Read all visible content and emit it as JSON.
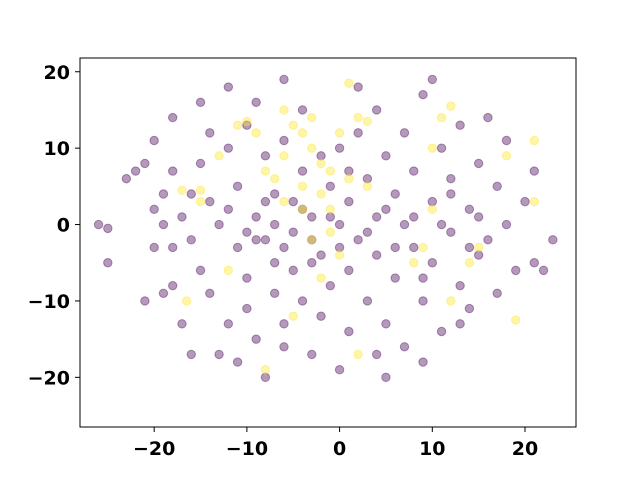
{
  "chart_data": {
    "type": "scatter",
    "title": "",
    "xlabel": "",
    "ylabel": "",
    "xlim": [
      -28,
      25.5
    ],
    "ylim": [
      -26.5,
      21.8
    ],
    "xticks": [
      -20,
      -10,
      0,
      10,
      20
    ],
    "yticks": [
      -20,
      -10,
      0,
      10,
      20
    ],
    "xtick_labels": [
      "−20",
      "−10",
      "0",
      "10",
      "20"
    ],
    "ytick_labels": [
      "−20",
      "−10",
      "0",
      "10",
      "20"
    ],
    "grid": false,
    "colormap_endpoints": {
      "class_0": "#440154",
      "class_1": "#fde725"
    },
    "marker_alpha": 0.4,
    "series": [
      {
        "color": "#440154",
        "points": [
          [
            -26,
            0
          ],
          [
            -25,
            -0.5
          ],
          [
            -25,
            -5
          ],
          [
            -23,
            6
          ],
          [
            -22,
            7
          ],
          [
            -21,
            8
          ],
          [
            -20,
            11
          ],
          [
            -20,
            2
          ],
          [
            -20,
            -3
          ],
          [
            -21,
            -10
          ],
          [
            -19,
            0
          ],
          [
            -19,
            4
          ],
          [
            -18,
            7
          ],
          [
            -18,
            -3
          ],
          [
            -18,
            -8
          ],
          [
            -18,
            14
          ],
          [
            -17,
            -13
          ],
          [
            -17,
            1
          ],
          [
            -16,
            4
          ],
          [
            -16,
            -2
          ],
          [
            -15,
            16
          ],
          [
            -15,
            8
          ],
          [
            -15,
            -6
          ],
          [
            -14,
            12
          ],
          [
            -14,
            3
          ],
          [
            -14,
            -9
          ],
          [
            -13,
            0
          ],
          [
            -13,
            -17
          ],
          [
            -12,
            18
          ],
          [
            -12,
            10
          ],
          [
            -12,
            -13
          ],
          [
            -11,
            5
          ],
          [
            -11,
            -3
          ],
          [
            -10,
            13
          ],
          [
            -10,
            -7
          ],
          [
            -10,
            -11
          ],
          [
            -9,
            1
          ],
          [
            -9,
            16
          ],
          [
            -9,
            -15
          ],
          [
            -8,
            9
          ],
          [
            -8,
            -2
          ],
          [
            -8,
            -20
          ],
          [
            -7,
            4
          ],
          [
            -7,
            -5
          ],
          [
            -7,
            -9
          ],
          [
            -6,
            19
          ],
          [
            -6,
            11
          ],
          [
            -6,
            -13
          ],
          [
            -5,
            -1
          ],
          [
            -5,
            3
          ],
          [
            -5,
            -6
          ],
          [
            -4,
            15
          ],
          [
            -4,
            7
          ],
          [
            -4,
            -10
          ],
          [
            -3,
            -2
          ],
          [
            -3,
            1
          ],
          [
            -3,
            -17
          ],
          [
            -2,
            9
          ],
          [
            -2,
            -4
          ],
          [
            -2,
            -12
          ],
          [
            -1,
            5
          ],
          [
            -1,
            -8
          ],
          [
            0,
            0
          ],
          [
            0,
            -19
          ],
          [
            0,
            10
          ],
          [
            1,
            3
          ],
          [
            1,
            -6
          ],
          [
            1,
            -14
          ],
          [
            2,
            12
          ],
          [
            2,
            -2
          ],
          [
            2,
            18
          ],
          [
            3,
            6
          ],
          [
            3,
            -10
          ],
          [
            4,
            1
          ],
          [
            4,
            -4
          ],
          [
            4,
            15
          ],
          [
            5,
            9
          ],
          [
            5,
            -13
          ],
          [
            5,
            -20
          ],
          [
            6,
            4
          ],
          [
            6,
            -7
          ],
          [
            7,
            12
          ],
          [
            7,
            0
          ],
          [
            7,
            -16
          ],
          [
            8,
            7
          ],
          [
            8,
            -3
          ],
          [
            9,
            17
          ],
          [
            9,
            -10
          ],
          [
            10,
            3
          ],
          [
            10,
            -5
          ],
          [
            10,
            19
          ],
          [
            11,
            10
          ],
          [
            11,
            -14
          ],
          [
            12,
            6
          ],
          [
            12,
            -1
          ],
          [
            13,
            13
          ],
          [
            13,
            -8
          ],
          [
            14,
            2
          ],
          [
            14,
            -11
          ],
          [
            15,
            8
          ],
          [
            15,
            -4
          ],
          [
            16,
            14
          ],
          [
            16,
            -2
          ],
          [
            17,
            5
          ],
          [
            17,
            -9
          ],
          [
            18,
            0
          ],
          [
            18,
            11
          ],
          [
            19,
            -6
          ],
          [
            20,
            3
          ],
          [
            21,
            7
          ],
          [
            21,
            -5
          ],
          [
            22,
            -6
          ],
          [
            23,
            -2
          ],
          [
            -16,
            -17
          ],
          [
            -11,
            -18
          ],
          [
            -6,
            -16
          ],
          [
            4,
            -17
          ],
          [
            9,
            -18
          ],
          [
            13,
            -13
          ],
          [
            -19,
            -9
          ],
          [
            -9,
            -2
          ],
          [
            -8,
            3
          ],
          [
            -7,
            0
          ],
          [
            -6,
            -3
          ],
          [
            -4,
            2
          ],
          [
            -3,
            -5
          ],
          [
            -1,
            1
          ],
          [
            0,
            -3
          ],
          [
            1,
            7
          ],
          [
            3,
            -1
          ],
          [
            5,
            2
          ],
          [
            6,
            -3
          ],
          [
            8,
            1
          ],
          [
            9,
            -7
          ],
          [
            11,
            0
          ],
          [
            12,
            4
          ],
          [
            14,
            -3
          ],
          [
            15,
            1
          ],
          [
            -12,
            2
          ],
          [
            -10,
            -1
          ]
        ]
      },
      {
        "color": "#fde725",
        "points": [
          [
            -17,
            4.5
          ],
          [
            -15,
            4.5
          ],
          [
            -15,
            3
          ],
          [
            -16.5,
            -10
          ],
          [
            -12,
            -6
          ],
          [
            -11,
            13
          ],
          [
            -10,
            13.5
          ],
          [
            -8,
            7
          ],
          [
            -6,
            9
          ],
          [
            -6,
            15
          ],
          [
            -5,
            13
          ],
          [
            -4,
            12
          ],
          [
            -3,
            10
          ],
          [
            -2,
            8
          ],
          [
            -1,
            7
          ],
          [
            -4,
            5
          ],
          [
            -2,
            4
          ],
          [
            -1,
            2
          ],
          [
            -6,
            3
          ],
          [
            -3,
            -2
          ],
          [
            1,
            6
          ],
          [
            2,
            14
          ],
          [
            3,
            13.5
          ],
          [
            1,
            18.5
          ],
          [
            -8,
            -19
          ],
          [
            -5,
            -12
          ],
          [
            2,
            -17
          ],
          [
            8,
            -5
          ],
          [
            9,
            -3
          ],
          [
            10,
            2
          ],
          [
            10,
            10
          ],
          [
            11,
            14
          ],
          [
            12,
            15.5
          ],
          [
            14,
            -5
          ],
          [
            15,
            -3
          ],
          [
            18,
            9
          ],
          [
            19,
            -12.5
          ],
          [
            21,
            3
          ],
          [
            21,
            11
          ],
          [
            -4,
            2
          ],
          [
            -1,
            -1
          ],
          [
            0,
            -4
          ],
          [
            -2,
            -7
          ],
          [
            -13,
            9
          ],
          [
            -9,
            12
          ],
          [
            -7,
            6
          ],
          [
            -3,
            14
          ],
          [
            0,
            12
          ],
          [
            3,
            5
          ],
          [
            12,
            -10
          ]
        ]
      }
    ]
  }
}
